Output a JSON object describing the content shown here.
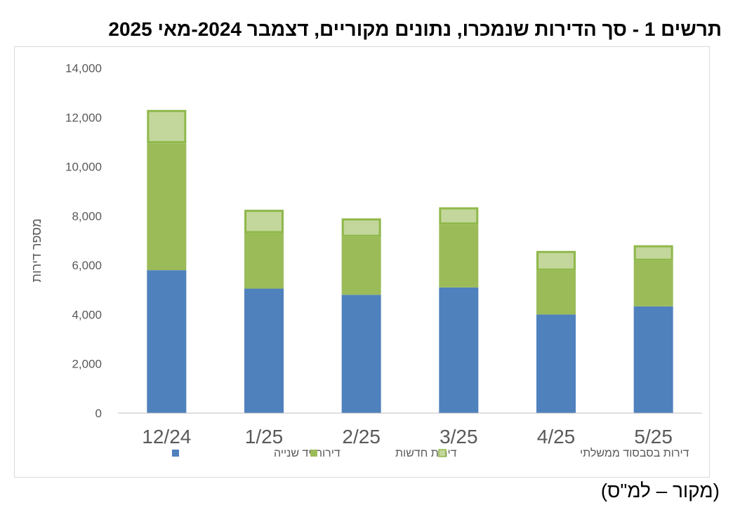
{
  "title": "תרשים 1 - סך הדירות שנמכרו, נתונים מקוריים, דצמבר 2024-מאי 2025",
  "source": "(מקור – למ\"ס)",
  "colors": {
    "second_hand": "#4f81bd",
    "new": "#9bbb59",
    "subsidized_fill": "#c3d69b",
    "subsidized_border": "#8fb84a",
    "axis": "#bfbfbf",
    "text": "#595959"
  },
  "chart_data": {
    "type": "bar",
    "stacked": true,
    "categories": [
      "12/24",
      "1/25",
      "2/25",
      "3/25",
      "4/25",
      "5/25"
    ],
    "series": [
      {
        "name": "דירות יד שנייה",
        "values": [
          5800,
          5050,
          4800,
          5100,
          4000,
          4330
        ]
      },
      {
        "name": "דירות חדשות",
        "values": [
          5150,
          2250,
          2350,
          2550,
          1780,
          1850
        ]
      },
      {
        "name": "דירות בסבסוד ממשלתי",
        "values": [
          1350,
          950,
          750,
          700,
          800,
          630
        ]
      }
    ],
    "ylabel": "מספר דירות",
    "ylim": [
      0,
      14000
    ],
    "yticks": [
      "0",
      "2,000",
      "4,000",
      "6,000",
      "8,000",
      "10,000",
      "12,000",
      "14,000"
    ],
    "grid": false,
    "legend": "bottom"
  }
}
